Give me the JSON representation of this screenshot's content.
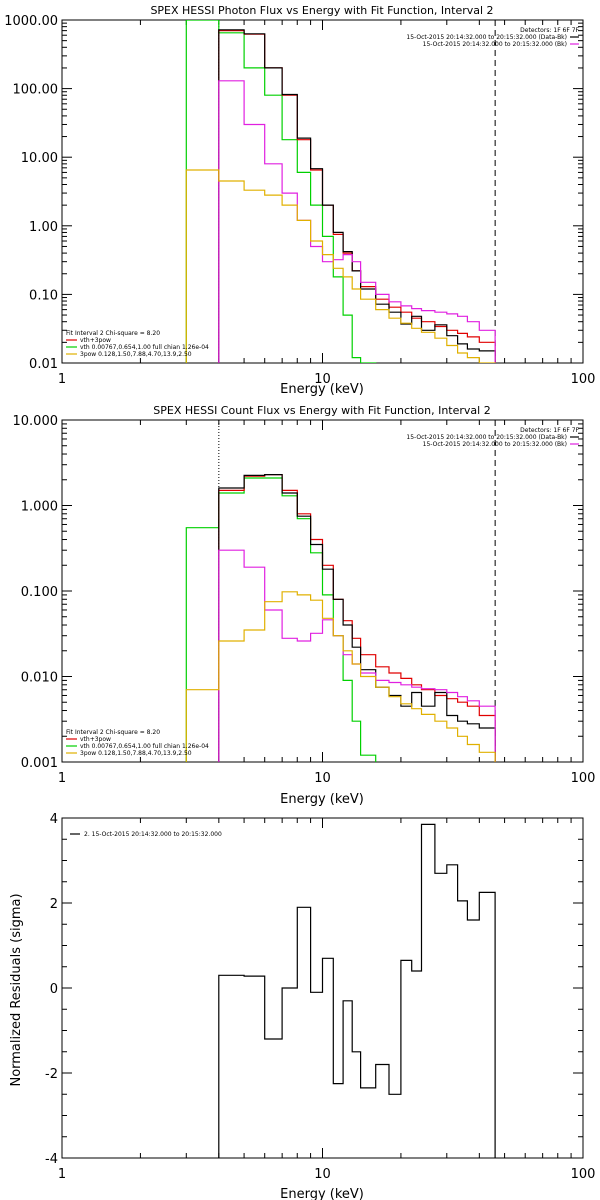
{
  "chart_data": [
    {
      "type": "line",
      "title": "SPEX HESSI Photon Flux vs Energy with Fit Function, Interval 2",
      "xlabel": "Energy (keV)",
      "ylabel": "",
      "xscale": "log",
      "yscale": "log",
      "xlim": [
        1,
        100
      ],
      "ylim": [
        0.01,
        1000
      ],
      "xticks": [
        {
          "v": 1,
          "label": "1"
        },
        {
          "v": 10,
          "label": "10"
        },
        {
          "v": 100,
          "label": "100"
        }
      ],
      "yticks": [
        {
          "v": 0.01,
          "label": "0.01"
        },
        {
          "v": 0.1,
          "label": "0.10"
        },
        {
          "v": 1,
          "label": "1.00"
        },
        {
          "v": 10,
          "label": "10.00"
        },
        {
          "v": 100,
          "label": "100.00"
        },
        {
          "v": 1000,
          "label": "1000.00"
        }
      ],
      "legend_tr": [
        "Detectors: 1F 6F 7F",
        "15-Oct-2015 20:14:32.000 to 20:15:32.000 (Data-Bk)",
        "15-Oct-2015 20:14:32.000 to 20:15:32.000 (Bk)"
      ],
      "legend_tr_colors": [
        "",
        "#000000",
        "#e020e0"
      ],
      "legend_bl": [
        "Fit Interval 2   Chi-square = 8.20",
        "vth+3pow",
        "vth 0.00767,0.654,1.00  full chian 1.26e-04",
        "3pow 0.128,1.50,7.88,4.70,13.9,2.50"
      ],
      "legend_bl_colors": [
        "",
        "#e00000",
        "#00d000",
        "#e0b000"
      ],
      "vlines": [
        {
          "x": 4.0,
          "style": "dotted",
          "color": "#000000"
        },
        {
          "x": 46.0,
          "style": "dashed",
          "color": "#000000"
        }
      ],
      "edges": [
        3.0,
        4.0,
        5.0,
        6.0,
        7.0,
        8.0,
        9.0,
        10.0,
        11.0,
        12.0,
        13.0,
        14.0,
        16.0,
        18.0,
        20.0,
        22.0,
        24.0,
        27.0,
        30.0,
        33.0,
        36.0,
        40.0,
        46.0
      ],
      "series": [
        {
          "color": "#00d000",
          "start": 0,
          "values": [
            8000,
            650,
            200,
            80,
            18,
            6,
            2,
            0.7,
            0.18,
            0.05,
            0.012,
            0.005
          ]
        },
        {
          "color": "#e00000",
          "start": 1,
          "values": [
            700,
            620,
            200,
            80,
            18,
            6.5,
            2.0,
            0.75,
            0.4,
            0.22,
            0.13,
            0.085,
            0.065,
            0.055,
            0.045,
            0.04,
            0.034,
            0.03,
            0.027,
            0.024,
            0.02
          ]
        },
        {
          "color": "#000000",
          "start": 1,
          "values": [
            720,
            630,
            200,
            82,
            19,
            6.8,
            2.0,
            0.8,
            0.42,
            0.22,
            0.12,
            0.072,
            0.055,
            0.037,
            0.048,
            0.03,
            0.036,
            0.025,
            0.019,
            0.016,
            0.015
          ]
        },
        {
          "color": "#e020e0",
          "start": 1,
          "values": [
            130,
            30,
            8,
            3.0,
            1.2,
            0.5,
            0.3,
            0.32,
            0.38,
            0.3,
            0.15,
            0.1,
            0.078,
            0.068,
            0.062,
            0.058,
            0.055,
            0.052,
            0.048,
            0.04,
            0.03
          ]
        },
        {
          "color": "#e0b000",
          "start": 0,
          "values": [
            6.5,
            4.5,
            3.3,
            2.8,
            2.0,
            1.2,
            0.6,
            0.38,
            0.24,
            0.18,
            0.12,
            0.085,
            0.06,
            0.045,
            0.038,
            0.032,
            0.028,
            0.023,
            0.018,
            0.014,
            0.012,
            0.01
          ]
        }
      ]
    },
    {
      "type": "line",
      "title": "SPEX HESSI Count Flux vs Energy with Fit Function, Interval 2",
      "xlabel": "Energy (keV)",
      "ylabel": "",
      "xscale": "log",
      "yscale": "log",
      "xlim": [
        1,
        100
      ],
      "ylim": [
        0.001,
        10
      ],
      "xticks": [
        {
          "v": 1,
          "label": "1"
        },
        {
          "v": 10,
          "label": "10"
        },
        {
          "v": 100,
          "label": "100"
        }
      ],
      "yticks": [
        {
          "v": 0.001,
          "label": "0.001"
        },
        {
          "v": 0.01,
          "label": "0.010"
        },
        {
          "v": 0.1,
          "label": "0.100"
        },
        {
          "v": 1,
          "label": "1.000"
        },
        {
          "v": 10,
          "label": "10.000"
        }
      ],
      "legend_tr": [
        "Detectors: 1F 6F 7F",
        "15-Oct-2015 20:14:32.000 to 20:15:32.000 (Data-Bk)",
        "15-Oct-2015 20:14:32.000 to 20:15:32.000 (Bk)"
      ],
      "legend_tr_colors": [
        "",
        "#000000",
        "#e020e0"
      ],
      "legend_bl": [
        "Fit Interval 2   Chi-square = 8.20",
        "vth+3pow",
        "vth 0.00767,0.654,1.00  full chian 1.26e-04",
        "3pow 0.128,1.50,7.88,4.70,13.9,2.50"
      ],
      "legend_bl_colors": [
        "",
        "#e00000",
        "#00d000",
        "#e0b000"
      ],
      "vlines": [
        {
          "x": 4.0,
          "style": "dotted",
          "color": "#000000"
        },
        {
          "x": 46.0,
          "style": "dashed",
          "color": "#000000"
        }
      ],
      "edges": [
        3.0,
        4.0,
        5.0,
        6.0,
        7.0,
        8.0,
        9.0,
        10.0,
        11.0,
        12.0,
        13.0,
        14.0,
        16.0,
        18.0,
        20.0,
        22.0,
        24.0,
        27.0,
        30.0,
        33.0,
        36.0,
        40.0,
        46.0
      ],
      "series": [
        {
          "color": "#00d000",
          "start": 0,
          "values": [
            0.55,
            1.4,
            2.1,
            2.1,
            1.3,
            0.7,
            0.28,
            0.09,
            0.03,
            0.009,
            0.003,
            0.0012
          ]
        },
        {
          "color": "#e00000",
          "start": 1,
          "values": [
            1.5,
            2.2,
            2.3,
            1.5,
            0.8,
            0.4,
            0.2,
            0.08,
            0.045,
            0.028,
            0.018,
            0.013,
            0.011,
            0.0095,
            0.008,
            0.007,
            0.006,
            0.0055,
            0.005,
            0.0045,
            0.0035
          ]
        },
        {
          "color": "#000000",
          "start": 1,
          "values": [
            1.6,
            2.25,
            2.3,
            1.4,
            0.75,
            0.35,
            0.18,
            0.08,
            0.04,
            0.022,
            0.012,
            0.0075,
            0.006,
            0.0045,
            0.0065,
            0.0045,
            0.0065,
            0.0035,
            0.003,
            0.0028,
            0.0025
          ]
        },
        {
          "color": "#e020e0",
          "start": 1,
          "values": [
            0.3,
            0.19,
            0.06,
            0.028,
            0.026,
            0.032,
            0.046,
            0.03,
            0.018,
            0.014,
            0.011,
            0.009,
            0.0085,
            0.008,
            0.0075,
            0.0072,
            0.007,
            0.0065,
            0.0058,
            0.0052,
            0.0045
          ]
        },
        {
          "color": "#e0b000",
          "start": 0,
          "values": [
            0.007,
            0.026,
            0.035,
            0.075,
            0.098,
            0.09,
            0.078,
            0.048,
            0.03,
            0.02,
            0.014,
            0.01,
            0.0075,
            0.0058,
            0.0048,
            0.0042,
            0.0036,
            0.003,
            0.0025,
            0.002,
            0.0016,
            0.0013
          ]
        }
      ]
    },
    {
      "type": "line",
      "title": "",
      "xlabel": "Energy (keV)",
      "ylabel": "Normalized Residuals (sigma)",
      "xscale": "log",
      "yscale": "linear",
      "xlim": [
        1,
        100
      ],
      "ylim": [
        -4,
        4
      ],
      "xticks": [
        {
          "v": 1,
          "label": "1"
        },
        {
          "v": 10,
          "label": "10"
        },
        {
          "v": 100,
          "label": "100"
        }
      ],
      "yticks": [
        {
          "v": -4,
          "label": "-4"
        },
        {
          "v": -2,
          "label": "-2"
        },
        {
          "v": 0,
          "label": "0"
        },
        {
          "v": 2,
          "label": "2"
        },
        {
          "v": 4,
          "label": "4"
        }
      ],
      "legend_tl": "2. 15-Oct-2015 20:14:32.000 to 20:15:32.000",
      "edges": [
        4.0,
        5.0,
        6.0,
        7.0,
        8.0,
        9.0,
        10.0,
        11.0,
        12.0,
        13.0,
        14.0,
        16.0,
        18.0,
        20.0,
        22.0,
        24.0,
        27.0,
        30.0,
        33.0,
        36.0,
        40.0,
        46.0
      ],
      "series": [
        {
          "color": "#000000",
          "start": 0,
          "values": [
            0.3,
            0.28,
            -1.2,
            0.0,
            1.9,
            -0.1,
            0.7,
            -2.25,
            -0.3,
            -1.5,
            -2.35,
            -1.8,
            -2.5,
            0.65,
            0.4,
            3.85,
            2.7,
            2.9,
            2.05,
            1.6,
            2.25
          ]
        }
      ]
    }
  ]
}
